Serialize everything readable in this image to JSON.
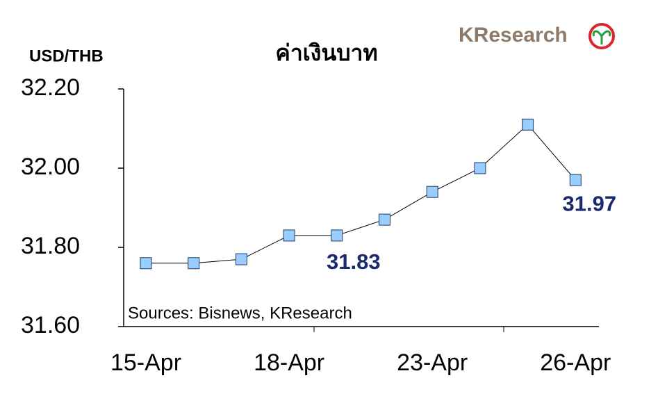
{
  "chart_data": {
    "type": "line",
    "title": "ค่าเงินบาท",
    "y_label": "USD/THB",
    "source": "Sources: Bisnews, KResearch",
    "logo": "KResearch",
    "categories": [
      "15-Apr",
      null,
      null,
      "18-Apr",
      null,
      null,
      "23-Apr",
      null,
      null,
      "26-Apr"
    ],
    "series": [
      {
        "name": "USD/THB",
        "color": "#99ccff",
        "values": [
          31.76,
          31.76,
          31.77,
          31.83,
          31.83,
          31.87,
          31.94,
          32.0,
          32.11,
          31.97
        ],
        "value_labels": [
          null,
          null,
          null,
          null,
          "31.83",
          null,
          null,
          null,
          null,
          "31.97"
        ]
      }
    ],
    "ylim": [
      31.6,
      32.2
    ],
    "yticks": [
      {
        "value": 31.6,
        "label": "31.60"
      },
      {
        "value": 31.8,
        "label": "31.80"
      },
      {
        "value": 32.0,
        "label": "32.00"
      },
      {
        "value": 32.2,
        "label": "32.20"
      }
    ],
    "grid": false
  }
}
